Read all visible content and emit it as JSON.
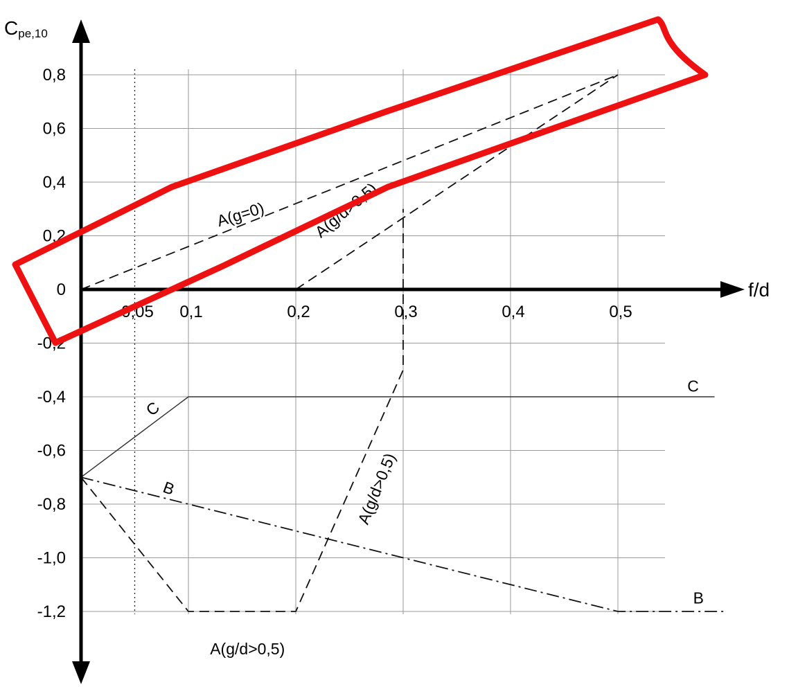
{
  "chart_data": {
    "type": "line",
    "title": "",
    "xlabel": "f/d",
    "ylabel_main": "C",
    "ylabel_sub": "pe,10",
    "xlim": [
      0,
      0.5
    ],
    "ylim": [
      -1.2,
      0.8
    ],
    "x_ticks": [
      {
        "v": 0.05,
        "label": "0,05"
      },
      {
        "v": 0.1,
        "label": "0,1"
      },
      {
        "v": 0.2,
        "label": "0,2"
      },
      {
        "v": 0.3,
        "label": "0,3"
      },
      {
        "v": 0.4,
        "label": "0,4"
      },
      {
        "v": 0.5,
        "label": "0,5"
      }
    ],
    "y_ticks": [
      {
        "v": 0.8,
        "label": "0,8"
      },
      {
        "v": 0.6,
        "label": "0,6"
      },
      {
        "v": 0.4,
        "label": "0,4"
      },
      {
        "v": 0.2,
        "label": "0,2"
      },
      {
        "v": 0,
        "label": "0"
      },
      {
        "v": -0.2,
        "label": "-0,2"
      },
      {
        "v": -0.4,
        "label": "-0,4"
      },
      {
        "v": -0.6,
        "label": "-0,6"
      },
      {
        "v": -0.8,
        "label": "-0,8"
      },
      {
        "v": -1.0,
        "label": "-1,0"
      },
      {
        "v": -1.2,
        "label": "-1,2"
      }
    ],
    "grid": true,
    "series": [
      {
        "name": "A(g=0)",
        "style": "dashed",
        "x": [
          0,
          0.05,
          0.5
        ],
        "y": [
          0,
          0.08,
          0.8
        ]
      },
      {
        "name": "A(g/d>0,5)",
        "style": "dashed",
        "x": [
          0.2,
          0.5
        ],
        "y": [
          0,
          0.8
        ]
      },
      {
        "name": "A(g/d>0,5)",
        "style": "dashed",
        "x": [
          0,
          0.1,
          0.2,
          0.3,
          0.3
        ],
        "y": [
          -0.7,
          -1.2,
          -1.2,
          -0.3,
          0.3
        ]
      },
      {
        "name": "C",
        "style": "solid",
        "x": [
          0,
          0.1,
          0.59
        ],
        "y": [
          -0.7,
          -0.4,
          -0.4
        ]
      },
      {
        "name": "B",
        "style": "dashdot",
        "x": [
          0,
          0.5,
          0.6
        ],
        "y": [
          -0.7,
          -1.2,
          -1.2
        ]
      }
    ],
    "curve_labels": [
      {
        "text": "A(g=0)",
        "x": 0.15,
        "y": 0.26,
        "angle": -17
      },
      {
        "text": "A(g/d>0,5)",
        "x": 0.25,
        "y": 0.28,
        "angle": -40
      },
      {
        "text": "A(g/d>0,5)",
        "x": 0.28,
        "y": -0.75,
        "angle": -68
      },
      {
        "text": "A(g/d>0,5)",
        "x": 0.155,
        "y": -1.36,
        "angle": 0
      },
      {
        "text": "C",
        "x": 0.07,
        "y": -0.46,
        "angle": -40
      },
      {
        "text": "C",
        "x": 0.57,
        "y": -0.38,
        "angle": 0
      },
      {
        "text": "B",
        "x": 0.08,
        "y": -0.76,
        "angle": 20
      },
      {
        "text": "B",
        "x": 0.575,
        "y": -1.17,
        "angle": 0
      }
    ],
    "highlight_color": "#ee1111"
  }
}
